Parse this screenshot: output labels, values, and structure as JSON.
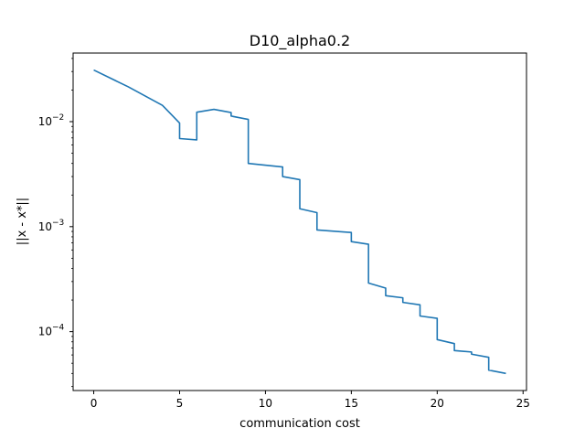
{
  "chart_data": {
    "type": "line",
    "title": "D10_alpha0.2",
    "xlabel": "communication cost",
    "ylabel": "||x - x*||",
    "xlim": [
      -1.2,
      25.2
    ],
    "ylim": [
      2.75e-05,
      0.045
    ],
    "yscale": "log",
    "grid": false,
    "x_ticks": [
      {
        "value": 0,
        "label": "0"
      },
      {
        "value": 5,
        "label": "5"
      },
      {
        "value": 10,
        "label": "10"
      },
      {
        "value": 15,
        "label": "15"
      },
      {
        "value": 20,
        "label": "20"
      },
      {
        "value": 25,
        "label": "25"
      }
    ],
    "y_ticks": [
      {
        "value": 0.0001,
        "base": "10",
        "exp": "−4"
      },
      {
        "value": 0.001,
        "base": "10",
        "exp": "−3"
      },
      {
        "value": 0.01,
        "base": "10",
        "exp": "−2"
      }
    ],
    "series": [
      {
        "color": "#1f77b4",
        "x": [
          0,
          2,
          4,
          5,
          5,
          6,
          6,
          7,
          8,
          8,
          9,
          9,
          11,
          11,
          12,
          12,
          13,
          13,
          15,
          15,
          16,
          16,
          17,
          17,
          18,
          18,
          19,
          19,
          20,
          20,
          21,
          21,
          22,
          22,
          23,
          23,
          24
        ],
        "y": [
          0.031,
          0.0215,
          0.0143,
          0.0097,
          0.0069,
          0.0067,
          0.0123,
          0.0131,
          0.0122,
          0.0113,
          0.0105,
          0.004,
          0.0037,
          0.003,
          0.0028,
          0.00148,
          0.00136,
          0.00093,
          0.00088,
          0.00072,
          0.00068,
          0.00029,
          0.00026,
          0.00022,
          0.00021,
          0.00019,
          0.00018,
          0.000141,
          0.000134,
          8.4e-05,
          7.7e-05,
          6.6e-05,
          6.4e-05,
          6.1e-05,
          5.7e-05,
          4.3e-05,
          4e-05
        ]
      }
    ]
  }
}
